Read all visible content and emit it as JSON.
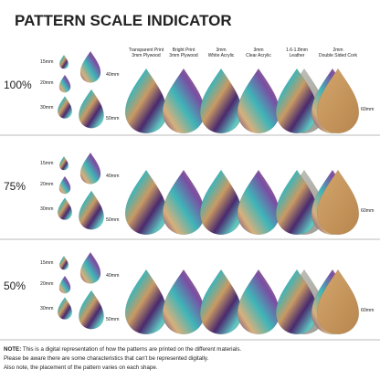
{
  "header": {
    "title": "PATTERN SCALE INDICATOR"
  },
  "columns": [
    {
      "lines": [
        "Transparent Print",
        "3mm Plywood"
      ]
    },
    {
      "lines": [
        "Bright Print",
        "3mm Plywood"
      ]
    },
    {
      "lines": [
        "3mm",
        "White Acrylic"
      ]
    },
    {
      "lines": [
        "3mm",
        "Clear Acrylic"
      ]
    },
    {
      "lines": [
        "1.6-1.8mm",
        "Leather"
      ]
    },
    {
      "lines": [
        "2mm",
        "Double Sided Cork"
      ]
    }
  ],
  "rows": [
    {
      "label": "100%",
      "sizes": [
        "15mm",
        "20mm",
        "30mm",
        "40mm",
        "50mm",
        "60mm"
      ]
    },
    {
      "label": "75%",
      "sizes": [
        "15mm",
        "20mm",
        "30mm",
        "40mm",
        "50mm",
        "60mm"
      ]
    },
    {
      "label": "50%",
      "sizes": [
        "15mm",
        "20mm",
        "30mm",
        "40mm",
        "50mm",
        "60mm"
      ]
    }
  ],
  "note": {
    "lead": "NOTE:",
    "lines": [
      " This is a digital representation of how the patterns are printed on the different materials.",
      "Please be aware there are some characteristics that can't be represented digitally.",
      "Also note, the placement of the pattern varies on each shape."
    ]
  }
}
